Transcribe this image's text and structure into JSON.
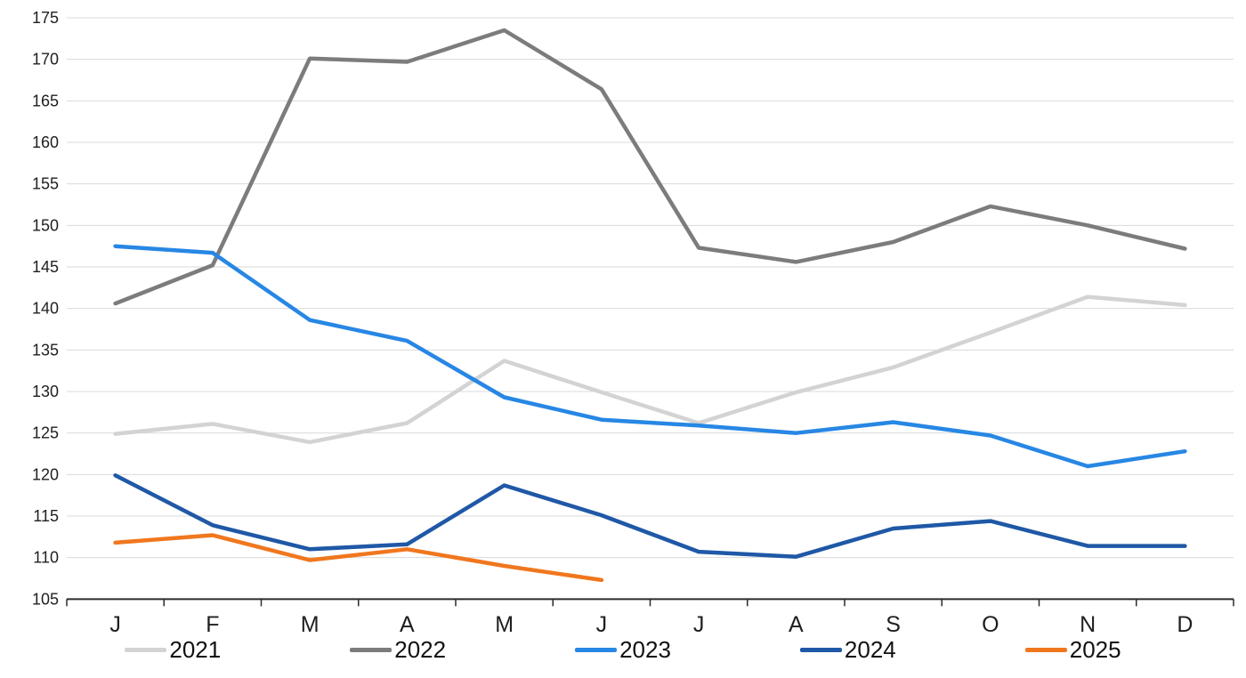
{
  "chart_data": {
    "type": "line",
    "title": "",
    "x_tick_labels": [
      "J",
      "F",
      "M",
      "A",
      "M",
      "J",
      "J",
      "A",
      "S",
      "O",
      "N",
      "D"
    ],
    "y_ticks": [
      105,
      110,
      115,
      120,
      125,
      130,
      135,
      140,
      145,
      150,
      155,
      160,
      165,
      170,
      175
    ],
    "ylim": [
      105,
      175
    ],
    "grid": "horizontal-only",
    "legend_position": "bottom",
    "series": [
      {
        "name": "2021",
        "color": "#D3D3D3",
        "values": [
          124.9,
          126.1,
          123.9,
          126.2,
          133.7,
          129.9,
          126.2,
          129.9,
          132.9,
          137.1,
          141.4,
          140.4
        ]
      },
      {
        "name": "2022",
        "color": "#7C7C7C",
        "values": [
          140.6,
          145.2,
          170.1,
          169.7,
          173.5,
          166.4,
          147.3,
          145.6,
          148.0,
          152.3,
          150.0,
          147.2
        ]
      },
      {
        "name": "2023",
        "color": "#2787E4",
        "values": [
          147.5,
          146.7,
          138.6,
          136.1,
          129.3,
          126.6,
          125.9,
          125.0,
          126.3,
          124.7,
          121.0,
          122.8
        ]
      },
      {
        "name": "2024",
        "color": "#1F58A6",
        "values": [
          119.9,
          113.9,
          111.0,
          111.6,
          118.7,
          115.1,
          110.7,
          110.1,
          113.5,
          114.4,
          111.4,
          111.4
        ]
      },
      {
        "name": "2025",
        "color": "#F0771E",
        "values": [
          111.8,
          112.7,
          109.7,
          111.0,
          109.0,
          107.3
        ]
      }
    ]
  },
  "styles": {
    "background": "#FFFFFF",
    "gridline_color": "#D9D9D9",
    "axis_color": "#2B2B2B",
    "tick_color": "#2B2B2B",
    "tick_label_color": "#1F1F1F",
    "legend_text_color": "#111111"
  }
}
